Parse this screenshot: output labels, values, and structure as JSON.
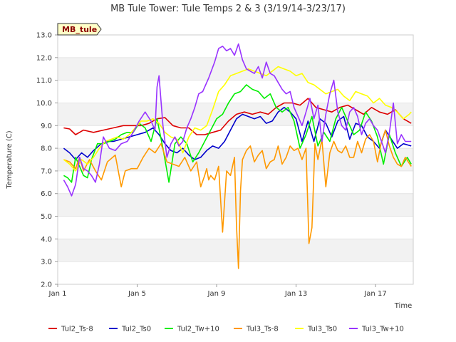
{
  "chart_data": {
    "type": "line",
    "title": "MB Tule Tower: Tule Temps 2 & 3 (3/19/14-3/23/17)",
    "xlabel": "Time",
    "ylabel": "Temperature (C)",
    "ylim": [
      2.0,
      13.0
    ],
    "xlim": [
      1,
      18.9
    ],
    "y_ticks": [
      2.0,
      3.0,
      4.0,
      5.0,
      6.0,
      7.0,
      8.0,
      9.0,
      10.0,
      11.0,
      12.0,
      13.0
    ],
    "x_ticks": [
      {
        "value": 1,
        "label": "Jan 1"
      },
      {
        "value": 5,
        "label": "Jan 5"
      },
      {
        "value": 9,
        "label": "Jan 9"
      },
      {
        "value": 13,
        "label": "Jan 13"
      },
      {
        "value": 17,
        "label": "Jan 17"
      }
    ],
    "grid": true,
    "legend_position": "bottom",
    "badge": "MB_tule",
    "series": [
      {
        "name": "Tul2_Ts-8",
        "color": "#dd0000",
        "x": [
          1.3,
          1.6,
          1.9,
          2.3,
          2.8,
          3.3,
          3.8,
          4.3,
          4.8,
          5.2,
          5.6,
          6.0,
          6.4,
          6.8,
          7.2,
          7.6,
          8.0,
          8.4,
          8.8,
          9.2,
          9.6,
          10.0,
          10.4,
          10.8,
          11.2,
          11.6,
          12.0,
          12.4,
          12.8,
          13.2,
          13.6,
          14.0,
          14.4,
          14.8,
          15.2,
          15.6,
          16.0,
          16.4,
          16.8,
          17.2,
          17.6,
          18.0,
          18.4,
          18.8
        ],
        "values": [
          8.9,
          8.85,
          8.6,
          8.8,
          8.7,
          8.8,
          8.9,
          9.0,
          9.0,
          9.0,
          9.1,
          9.3,
          9.35,
          9.0,
          8.9,
          8.9,
          8.6,
          8.6,
          8.7,
          8.8,
          9.2,
          9.5,
          9.6,
          9.5,
          9.6,
          9.5,
          9.8,
          10.0,
          10.0,
          9.9,
          10.2,
          9.8,
          9.7,
          9.6,
          9.8,
          9.9,
          9.7,
          9.5,
          9.8,
          9.6,
          9.5,
          9.7,
          9.3,
          9.1
        ]
      },
      {
        "name": "Tul2_Ts0",
        "color": "#0000cc",
        "x": [
          1.3,
          1.6,
          1.9,
          2.2,
          2.5,
          2.8,
          3.2,
          3.5,
          3.8,
          4.2,
          4.6,
          5.0,
          5.4,
          5.8,
          6.1,
          6.4,
          6.7,
          7.0,
          7.3,
          7.6,
          7.9,
          8.2,
          8.5,
          8.8,
          9.1,
          9.4,
          9.7,
          10.0,
          10.3,
          10.6,
          10.9,
          11.2,
          11.5,
          11.8,
          12.1,
          12.4,
          12.7,
          13.0,
          13.3,
          13.6,
          13.9,
          14.2,
          14.5,
          14.8,
          15.1,
          15.4,
          15.7,
          16.0,
          16.3,
          16.6,
          16.9,
          17.2,
          17.5,
          17.8,
          18.1,
          18.4,
          18.8
        ],
        "values": [
          8.0,
          7.8,
          7.5,
          7.8,
          7.6,
          7.9,
          8.2,
          8.3,
          8.3,
          8.4,
          8.5,
          8.6,
          8.7,
          8.9,
          8.6,
          8.2,
          7.9,
          7.8,
          8.0,
          7.7,
          7.5,
          7.6,
          7.9,
          8.1,
          8.0,
          8.3,
          8.8,
          9.3,
          9.5,
          9.4,
          9.3,
          9.4,
          9.1,
          9.2,
          9.6,
          9.8,
          9.6,
          9.3,
          8.3,
          9.2,
          8.3,
          9.3,
          9.1,
          8.5,
          9.2,
          9.4,
          8.4,
          9.1,
          9.0,
          8.5,
          8.3,
          8.0,
          8.8,
          8.4,
          8.0,
          8.2,
          8.1
        ]
      },
      {
        "name": "Tul2_Tw+10",
        "color": "#00ee00",
        "x": [
          1.3,
          1.5,
          1.7,
          1.9,
          2.1,
          2.3,
          2.5,
          2.7,
          3.0,
          3.3,
          3.6,
          3.9,
          4.2,
          4.5,
          4.8,
          5.1,
          5.4,
          5.7,
          6.0,
          6.3,
          6.6,
          6.9,
          7.2,
          7.5,
          7.8,
          8.1,
          8.4,
          8.7,
          9.0,
          9.3,
          9.6,
          9.9,
          10.2,
          10.5,
          10.8,
          11.1,
          11.4,
          11.7,
          12.0,
          12.3,
          12.6,
          12.9,
          13.2,
          13.5,
          13.8,
          14.1,
          14.4,
          14.7,
          15.0,
          15.3,
          15.6,
          15.9,
          16.2,
          16.5,
          16.8,
          17.1,
          17.4,
          17.7,
          18.0,
          18.3,
          18.6,
          18.8
        ],
        "values": [
          6.8,
          6.7,
          6.5,
          7.6,
          7.2,
          6.8,
          6.7,
          7.5,
          8.2,
          8.2,
          8.3,
          8.4,
          8.6,
          8.7,
          8.7,
          9.1,
          8.9,
          8.3,
          9.3,
          8.0,
          6.5,
          8.2,
          8.5,
          8.2,
          7.4,
          7.8,
          8.3,
          8.8,
          9.3,
          9.5,
          10.0,
          10.4,
          10.5,
          10.8,
          10.6,
          10.5,
          10.2,
          10.4,
          9.8,
          9.6,
          9.8,
          9.2,
          8.0,
          8.6,
          9.4,
          8.1,
          8.7,
          8.3,
          9.3,
          9.8,
          9.2,
          8.6,
          8.8,
          9.6,
          9.2,
          8.5,
          7.3,
          8.6,
          7.8,
          7.2,
          7.6,
          7.3
        ]
      },
      {
        "name": "Tul3_Ts-8",
        "color": "#ff9900",
        "x": [
          1.3,
          1.6,
          1.9,
          2.1,
          2.3,
          2.6,
          2.9,
          3.2,
          3.5,
          3.9,
          4.2,
          4.4,
          4.7,
          5.0,
          5.3,
          5.6,
          5.9,
          6.2,
          6.5,
          6.8,
          7.1,
          7.4,
          7.7,
          8.0,
          8.2,
          8.4,
          8.5,
          8.6,
          8.7,
          8.9,
          9.1,
          9.3,
          9.5,
          9.7,
          9.9,
          10.0,
          10.1,
          10.2,
          10.3,
          10.5,
          10.7,
          10.9,
          11.1,
          11.3,
          11.5,
          11.7,
          11.9,
          12.1,
          12.3,
          12.5,
          12.7,
          12.9,
          13.1,
          13.3,
          13.5,
          13.65,
          13.8,
          13.95,
          14.1,
          14.3,
          14.5,
          14.7,
          14.9,
          15.1,
          15.3,
          15.5,
          15.7,
          15.9,
          16.1,
          16.3,
          16.5,
          16.7,
          16.9,
          17.1,
          17.3,
          17.5,
          17.7,
          17.9,
          18.1,
          18.3,
          18.5,
          18.8
        ],
        "values": [
          7.5,
          7.4,
          7.1,
          7.6,
          7.0,
          7.5,
          7.0,
          6.6,
          7.4,
          7.7,
          6.3,
          7.0,
          7.1,
          7.1,
          7.6,
          8.0,
          7.8,
          8.2,
          7.4,
          7.3,
          7.2,
          7.6,
          7.0,
          7.4,
          6.3,
          6.8,
          7.1,
          6.6,
          6.8,
          6.6,
          7.2,
          4.3,
          7.0,
          6.8,
          7.6,
          4.6,
          2.7,
          6.1,
          7.5,
          7.9,
          8.1,
          7.4,
          7.7,
          7.9,
          7.1,
          7.4,
          7.5,
          8.1,
          7.3,
          7.6,
          8.1,
          7.9,
          8.0,
          7.5,
          8.0,
          3.8,
          4.5,
          8.2,
          7.5,
          8.4,
          6.3,
          7.8,
          8.3,
          7.9,
          7.8,
          8.1,
          7.6,
          7.6,
          8.3,
          7.8,
          8.4,
          8.6,
          8.3,
          7.4,
          8.3,
          8.8,
          8.1,
          7.6,
          7.3,
          7.2,
          7.6,
          7.2
        ]
      },
      {
        "name": "Tul3_Ts0",
        "color": "#ffff00",
        "x": [
          1.3,
          1.6,
          1.9,
          2.2,
          2.5,
          2.8,
          3.1,
          3.4,
          3.7,
          4.0,
          4.3,
          4.6,
          4.9,
          5.2,
          5.5,
          5.8,
          6.1,
          6.4,
          6.7,
          7.0,
          7.3,
          7.6,
          7.9,
          8.2,
          8.5,
          8.8,
          9.1,
          9.4,
          9.7,
          10.0,
          10.3,
          10.6,
          10.9,
          11.2,
          11.5,
          11.8,
          12.1,
          12.4,
          12.7,
          13.0,
          13.3,
          13.6,
          13.9,
          14.2,
          14.5,
          14.8,
          15.1,
          15.4,
          15.7,
          16.0,
          16.3,
          16.6,
          16.9,
          17.2,
          17.5,
          17.8,
          18.1,
          18.4,
          18.7,
          18.8
        ],
        "values": [
          7.5,
          7.3,
          7.0,
          7.5,
          7.3,
          7.6,
          8.0,
          8.3,
          8.4,
          8.5,
          8.4,
          8.6,
          8.9,
          9.2,
          9.2,
          9.3,
          9.1,
          8.7,
          8.5,
          8.4,
          7.8,
          8.5,
          8.9,
          8.8,
          9.0,
          9.7,
          10.5,
          10.8,
          11.2,
          11.3,
          11.4,
          11.5,
          11.4,
          11.3,
          11.2,
          11.4,
          11.6,
          11.5,
          11.4,
          11.2,
          11.3,
          10.9,
          10.8,
          10.6,
          10.4,
          10.5,
          10.6,
          10.3,
          10.1,
          10.5,
          10.4,
          10.3,
          10.0,
          10.2,
          9.9,
          9.8,
          9.6,
          9.3,
          9.5,
          9.6
        ]
      },
      {
        "name": "Tul3_Tw+10",
        "color": "#9933ff",
        "x": [
          1.3,
          1.5,
          1.7,
          1.9,
          2.1,
          2.3,
          2.5,
          2.7,
          2.9,
          3.1,
          3.3,
          3.6,
          3.9,
          4.2,
          4.5,
          4.8,
          5.1,
          5.4,
          5.7,
          5.9,
          6.0,
          6.1,
          6.3,
          6.5,
          6.7,
          6.9,
          7.1,
          7.3,
          7.5,
          7.7,
          7.9,
          8.1,
          8.3,
          8.6,
          8.9,
          9.1,
          9.3,
          9.5,
          9.7,
          9.9,
          10.1,
          10.3,
          10.5,
          10.7,
          10.9,
          11.1,
          11.3,
          11.5,
          11.7,
          11.9,
          12.1,
          12.3,
          12.5,
          12.7,
          12.9,
          13.1,
          13.3,
          13.5,
          13.7,
          13.9,
          14.1,
          14.3,
          14.5,
          14.7,
          14.9,
          15.1,
          15.3,
          15.5,
          15.7,
          15.9,
          16.1,
          16.3,
          16.5,
          16.7,
          16.9,
          17.1,
          17.3,
          17.5,
          17.7,
          17.9,
          18.1,
          18.3,
          18.5,
          18.8
        ],
        "values": [
          6.6,
          6.3,
          5.9,
          6.4,
          7.6,
          7.1,
          7.0,
          6.8,
          6.5,
          7.3,
          8.5,
          8.0,
          7.9,
          8.2,
          8.3,
          8.7,
          9.2,
          9.6,
          9.2,
          8.8,
          10.7,
          11.2,
          9.0,
          7.6,
          8.2,
          8.5,
          8.1,
          8.3,
          8.9,
          9.3,
          9.8,
          10.4,
          10.5,
          11.1,
          11.8,
          12.4,
          12.5,
          12.3,
          12.4,
          12.1,
          12.6,
          11.9,
          11.5,
          11.4,
          11.3,
          11.6,
          11.1,
          11.8,
          11.3,
          11.2,
          10.9,
          10.6,
          10.4,
          10.5,
          9.8,
          9.4,
          9.0,
          9.6,
          10.2,
          9.3,
          9.9,
          8.3,
          9.5,
          10.4,
          11.0,
          9.6,
          9.0,
          8.8,
          9.6,
          9.8,
          9.4,
          8.6,
          9.1,
          9.3,
          9.0,
          8.8,
          8.3,
          7.8,
          8.7,
          10.0,
          8.2,
          8.6,
          8.3,
          8.3
        ]
      }
    ]
  }
}
